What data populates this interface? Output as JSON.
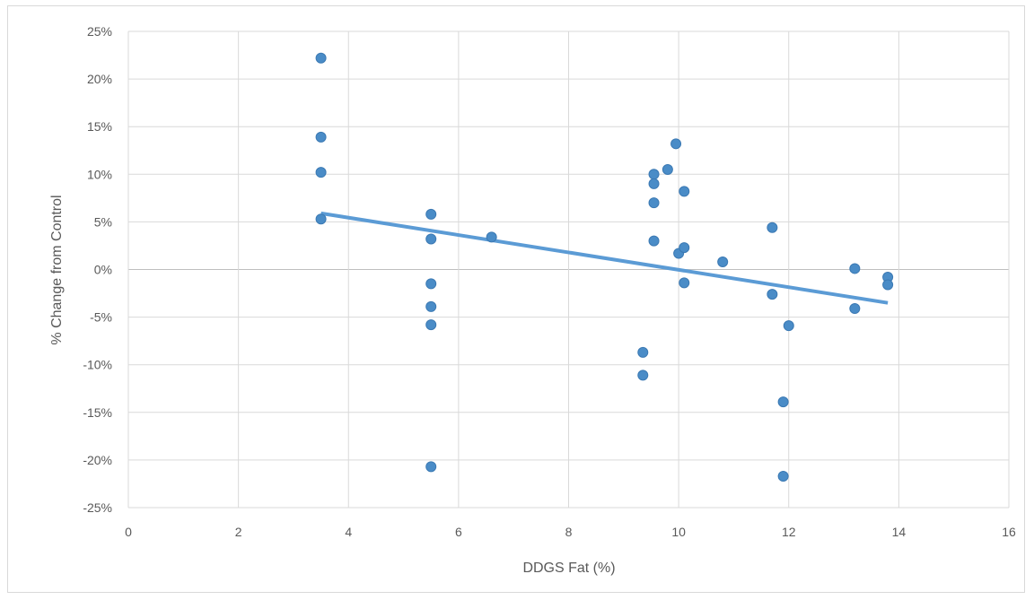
{
  "chart_data": {
    "type": "scatter",
    "title": "",
    "xlabel": "DDGS Fat (%)",
    "ylabel": "% Change from Control",
    "xlim": [
      0,
      16
    ],
    "ylim": [
      -25,
      25
    ],
    "x_ticks": [
      0,
      2,
      4,
      6,
      8,
      10,
      12,
      14,
      16
    ],
    "x_tick_labels": [
      "0",
      "2",
      "4",
      "6",
      "8",
      "10",
      "12",
      "14",
      "16"
    ],
    "y_ticks": [
      -25,
      -20,
      -15,
      -10,
      -5,
      0,
      5,
      10,
      15,
      20,
      25
    ],
    "y_tick_labels": [
      "-25%",
      "-20%",
      "-15%",
      "-10%",
      "-5%",
      "0%",
      "5%",
      "10%",
      "15%",
      "20%",
      "25%"
    ],
    "grid": true,
    "legend": "none",
    "colors": {
      "points": "#4a8cc7",
      "point_edge": "#3b79b3",
      "trendline": "#5b9bd5",
      "grid": "#d9d9d9",
      "zero_line": "#bfbfbf"
    },
    "series": [
      {
        "points": [
          {
            "x": 3.5,
            "y": 22.2
          },
          {
            "x": 3.5,
            "y": 13.9
          },
          {
            "x": 3.5,
            "y": 10.2
          },
          {
            "x": 3.5,
            "y": 5.3
          },
          {
            "x": 5.5,
            "y": 5.8
          },
          {
            "x": 5.5,
            "y": 3.2
          },
          {
            "x": 5.5,
            "y": -1.5
          },
          {
            "x": 5.5,
            "y": -3.9
          },
          {
            "x": 5.5,
            "y": -5.8
          },
          {
            "x": 5.5,
            "y": -20.7
          },
          {
            "x": 6.6,
            "y": 3.4
          },
          {
            "x": 9.35,
            "y": -8.7
          },
          {
            "x": 9.35,
            "y": -11.1
          },
          {
            "x": 9.55,
            "y": 10.0
          },
          {
            "x": 9.55,
            "y": 9.0
          },
          {
            "x": 9.55,
            "y": 7.0
          },
          {
            "x": 9.55,
            "y": 3.0
          },
          {
            "x": 9.8,
            "y": 10.5
          },
          {
            "x": 9.95,
            "y": 13.2
          },
          {
            "x": 10.0,
            "y": 1.7
          },
          {
            "x": 10.1,
            "y": 8.2
          },
          {
            "x": 10.1,
            "y": 2.3
          },
          {
            "x": 10.1,
            "y": -1.4
          },
          {
            "x": 10.8,
            "y": 0.8
          },
          {
            "x": 11.7,
            "y": 4.4
          },
          {
            "x": 11.7,
            "y": -2.6
          },
          {
            "x": 11.9,
            "y": -13.9
          },
          {
            "x": 11.9,
            "y": -21.7
          },
          {
            "x": 12.0,
            "y": -5.9
          },
          {
            "x": 13.2,
            "y": 0.1
          },
          {
            "x": 13.2,
            "y": -4.1
          },
          {
            "x": 13.8,
            "y": -0.8
          },
          {
            "x": 13.8,
            "y": -1.6
          }
        ]
      }
    ],
    "trendline": {
      "type": "linear",
      "x": [
        3.5,
        13.8
      ],
      "y": [
        5.9,
        -3.5
      ]
    }
  }
}
